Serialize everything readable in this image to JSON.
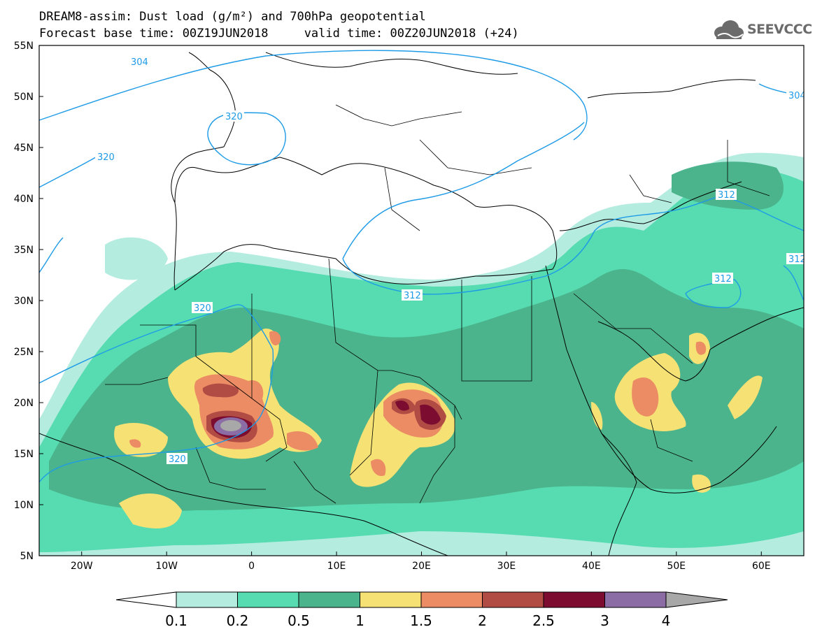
{
  "header": {
    "title_line1": "DREAM8-assim: Dust load (g/m²) and 700hPa geopotential",
    "title_line2": "Forecast base time: 00Z19JUN2018     valid time: 00Z20JUN2018 (+24)"
  },
  "logo": {
    "text": "SEEVCCC",
    "icon": "cloud-logo-icon"
  },
  "map": {
    "lat_labels": [
      "55N",
      "50N",
      "45N",
      "40N",
      "35N",
      "30N",
      "25N",
      "20N",
      "15N",
      "10N",
      "5N"
    ],
    "lon_labels": [
      "20W",
      "10W",
      "0",
      "10E",
      "20E",
      "30E",
      "40E",
      "50E",
      "60E"
    ],
    "contour_labels": [
      "304",
      "320",
      "320",
      "320",
      "320",
      "312",
      "312",
      "312",
      "312",
      "304"
    ],
    "lon_range": [
      -25,
      65
    ],
    "lat_range": [
      5,
      55
    ]
  },
  "colorbar": {
    "labels": [
      "0.1",
      "0.2",
      "0.5",
      "1",
      "1.5",
      "2",
      "2.5",
      "3",
      "4"
    ],
    "colors": [
      "#b4ece0",
      "#56dcb0",
      "#4bb48c",
      "#f6e174",
      "#ec8c64",
      "#b04c44",
      "#7c0c30",
      "#8c6ca4",
      "#a8a8a8"
    ]
  },
  "colors": {
    "contour": "#1e9be6"
  }
}
